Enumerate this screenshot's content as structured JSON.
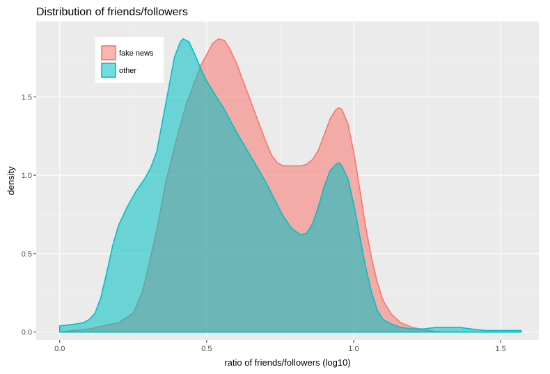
{
  "chart_data": {
    "type": "area",
    "title": "Distribution of friends/followers",
    "xlabel": "ratio of friends/followers (log10)",
    "ylabel": "density",
    "xlim": [
      -0.08,
      1.63
    ],
    "ylim": [
      -0.05,
      1.98
    ],
    "xticks": [
      0.0,
      0.5,
      1.0,
      1.5
    ],
    "xtick_labels": [
      "0.0",
      "0.5",
      "1.0",
      "1.5"
    ],
    "yticks": [
      0.0,
      0.5,
      1.0,
      1.5
    ],
    "ytick_labels": [
      "0.0",
      "0.5",
      "1.0",
      "1.5"
    ],
    "grid": true,
    "legend_position": "top-left",
    "series": [
      {
        "name": "fake news",
        "color": "#F8766D",
        "fill": "#F4A9A2",
        "points": [
          [
            0.0,
            0.0
          ],
          [
            0.05,
            0.01
          ],
          [
            0.1,
            0.02
          ],
          [
            0.15,
            0.04
          ],
          [
            0.2,
            0.06
          ],
          [
            0.25,
            0.12
          ],
          [
            0.28,
            0.25
          ],
          [
            0.3,
            0.4
          ],
          [
            0.33,
            0.65
          ],
          [
            0.36,
            0.95
          ],
          [
            0.4,
            1.25
          ],
          [
            0.43,
            1.45
          ],
          [
            0.46,
            1.6
          ],
          [
            0.48,
            1.7
          ],
          [
            0.5,
            1.77
          ],
          [
            0.52,
            1.84
          ],
          [
            0.54,
            1.87
          ],
          [
            0.56,
            1.86
          ],
          [
            0.58,
            1.8
          ],
          [
            0.6,
            1.72
          ],
          [
            0.62,
            1.62
          ],
          [
            0.64,
            1.52
          ],
          [
            0.66,
            1.42
          ],
          [
            0.68,
            1.32
          ],
          [
            0.7,
            1.22
          ],
          [
            0.72,
            1.13
          ],
          [
            0.74,
            1.08
          ],
          [
            0.76,
            1.06
          ],
          [
            0.8,
            1.06
          ],
          [
            0.82,
            1.06
          ],
          [
            0.84,
            1.07
          ],
          [
            0.86,
            1.1
          ],
          [
            0.88,
            1.16
          ],
          [
            0.9,
            1.26
          ],
          [
            0.92,
            1.36
          ],
          [
            0.94,
            1.42
          ],
          [
            0.95,
            1.43
          ],
          [
            0.96,
            1.42
          ],
          [
            0.98,
            1.33
          ],
          [
            1.0,
            1.15
          ],
          [
            1.02,
            0.92
          ],
          [
            1.04,
            0.68
          ],
          [
            1.06,
            0.48
          ],
          [
            1.08,
            0.32
          ],
          [
            1.1,
            0.2
          ],
          [
            1.13,
            0.11
          ],
          [
            1.16,
            0.06
          ],
          [
            1.2,
            0.03
          ],
          [
            1.25,
            0.01
          ],
          [
            1.3,
            0.0
          ],
          [
            1.4,
            0.0
          ],
          [
            1.57,
            0.0
          ]
        ]
      },
      {
        "name": "other",
        "color": "#00BFC4",
        "fill": "#7AD6D8",
        "points": [
          [
            0.0,
            0.04
          ],
          [
            0.05,
            0.05
          ],
          [
            0.08,
            0.06
          ],
          [
            0.1,
            0.08
          ],
          [
            0.12,
            0.12
          ],
          [
            0.14,
            0.22
          ],
          [
            0.16,
            0.38
          ],
          [
            0.18,
            0.55
          ],
          [
            0.2,
            0.68
          ],
          [
            0.23,
            0.8
          ],
          [
            0.26,
            0.9
          ],
          [
            0.29,
            0.98
          ],
          [
            0.31,
            1.05
          ],
          [
            0.33,
            1.15
          ],
          [
            0.35,
            1.35
          ],
          [
            0.37,
            1.55
          ],
          [
            0.39,
            1.75
          ],
          [
            0.41,
            1.85
          ],
          [
            0.42,
            1.87
          ],
          [
            0.44,
            1.85
          ],
          [
            0.46,
            1.77
          ],
          [
            0.48,
            1.68
          ],
          [
            0.5,
            1.6
          ],
          [
            0.52,
            1.54
          ],
          [
            0.56,
            1.42
          ],
          [
            0.6,
            1.28
          ],
          [
            0.65,
            1.12
          ],
          [
            0.7,
            0.96
          ],
          [
            0.73,
            0.85
          ],
          [
            0.76,
            0.74
          ],
          [
            0.79,
            0.66
          ],
          [
            0.82,
            0.62
          ],
          [
            0.84,
            0.63
          ],
          [
            0.86,
            0.69
          ],
          [
            0.88,
            0.8
          ],
          [
            0.9,
            0.93
          ],
          [
            0.92,
            1.03
          ],
          [
            0.94,
            1.07
          ],
          [
            0.95,
            1.08
          ],
          [
            0.96,
            1.06
          ],
          [
            0.98,
            0.98
          ],
          [
            1.0,
            0.82
          ],
          [
            1.02,
            0.62
          ],
          [
            1.04,
            0.42
          ],
          [
            1.06,
            0.26
          ],
          [
            1.08,
            0.14
          ],
          [
            1.1,
            0.08
          ],
          [
            1.13,
            0.05
          ],
          [
            1.16,
            0.03
          ],
          [
            1.2,
            0.02
          ],
          [
            1.24,
            0.02
          ],
          [
            1.28,
            0.03
          ],
          [
            1.32,
            0.03
          ],
          [
            1.36,
            0.03
          ],
          [
            1.4,
            0.02
          ],
          [
            1.45,
            0.01
          ],
          [
            1.5,
            0.01
          ],
          [
            1.57,
            0.01
          ]
        ]
      }
    ]
  }
}
